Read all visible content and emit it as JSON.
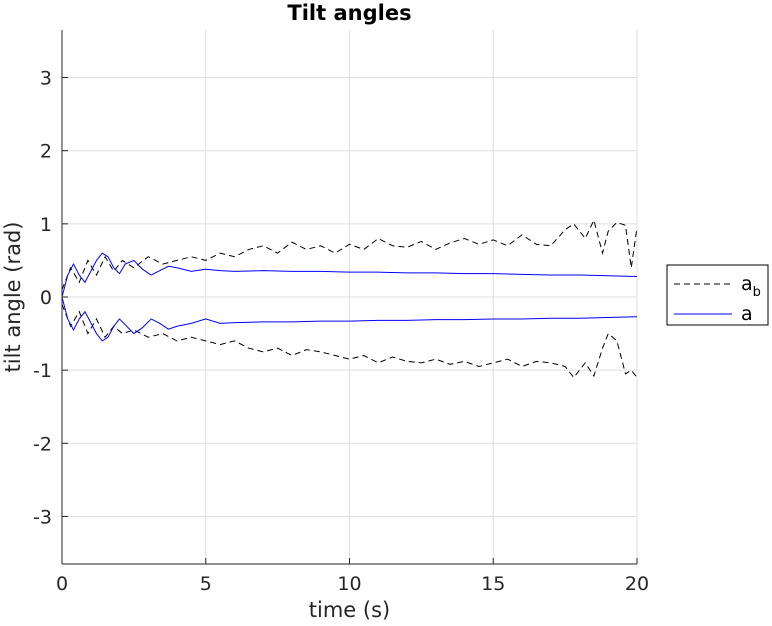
{
  "chart_data": {
    "type": "line",
    "title": "Tilt angles",
    "xlabel": "time (s)",
    "ylabel": "tilt angle (rad)",
    "xlim": [
      0,
      20
    ],
    "ylim": [
      -3.65,
      3.65
    ],
    "xticks": [
      0,
      5,
      10,
      15,
      20
    ],
    "xtick_labels": [
      "0",
      "5",
      "10",
      "15",
      "20"
    ],
    "yticks": [
      -3,
      -2,
      -1,
      0,
      1,
      2,
      3
    ],
    "ytick_labels": [
      "-3",
      "-2",
      "-1",
      "0",
      "1",
      "2",
      "3"
    ],
    "grid": true,
    "legend_position": "outside-right",
    "legend": [
      {
        "base": "a",
        "subscript": "b",
        "style": "dashed",
        "color": "#000000"
      },
      {
        "base": "a",
        "subscript": "",
        "style": "solid",
        "color": "#0000ff"
      }
    ],
    "series": [
      {
        "legend": 0,
        "style": "dashed",
        "color": "#000000",
        "x": [
          0,
          0.3,
          0.6,
          0.9,
          1.2,
          1.5,
          1.8,
          2.1,
          2.5,
          3,
          3.5,
          4,
          4.5,
          5,
          5.5,
          6,
          6.5,
          7,
          7.5,
          8,
          8.5,
          9,
          9.5,
          10,
          10.5,
          11,
          11.5,
          12,
          12.5,
          13,
          13.5,
          14,
          14.5,
          15,
          15.5,
          16,
          16.5,
          17,
          17.5,
          17.8,
          18.2,
          18.5,
          18.8,
          19,
          19.3,
          19.6,
          19.8,
          20
        ],
        "y": [
          0.1,
          0.4,
          0.2,
          0.5,
          0.3,
          0.55,
          0.35,
          0.5,
          0.4,
          0.55,
          0.45,
          0.5,
          0.55,
          0.5,
          0.6,
          0.55,
          0.65,
          0.7,
          0.6,
          0.75,
          0.65,
          0.7,
          0.6,
          0.72,
          0.65,
          0.8,
          0.7,
          0.68,
          0.76,
          0.65,
          0.74,
          0.8,
          0.72,
          0.78,
          0.7,
          0.85,
          0.72,
          0.7,
          0.92,
          1.0,
          0.8,
          1.05,
          0.6,
          0.9,
          1.02,
          0.98,
          0.4,
          0.95
        ]
      },
      {
        "legend": 0,
        "style": "dashed",
        "color": "#000000",
        "x": [
          0,
          0.3,
          0.6,
          0.9,
          1.2,
          1.5,
          1.8,
          2.1,
          2.5,
          3,
          3.5,
          4,
          4.5,
          5,
          5.5,
          6,
          6.5,
          7,
          7.5,
          8,
          8.5,
          9,
          9.5,
          10,
          10.5,
          11,
          11.5,
          12,
          12.5,
          13,
          13.5,
          14,
          14.5,
          15,
          15.5,
          16,
          16.5,
          17,
          17.5,
          17.8,
          18.2,
          18.5,
          18.8,
          19,
          19.3,
          19.6,
          19.8,
          20
        ],
        "y": [
          -0.1,
          -0.4,
          -0.2,
          -0.5,
          -0.3,
          -0.55,
          -0.4,
          -0.5,
          -0.45,
          -0.55,
          -0.5,
          -0.6,
          -0.55,
          -0.6,
          -0.65,
          -0.6,
          -0.7,
          -0.75,
          -0.7,
          -0.8,
          -0.72,
          -0.75,
          -0.8,
          -0.85,
          -0.8,
          -0.9,
          -0.82,
          -0.88,
          -0.9,
          -0.85,
          -0.92,
          -0.88,
          -0.95,
          -0.9,
          -0.85,
          -0.95,
          -0.88,
          -0.9,
          -0.95,
          -1.1,
          -0.9,
          -1.08,
          -0.7,
          -0.5,
          -0.6,
          -1.05,
          -1.0,
          -1.1
        ]
      },
      {
        "legend": 1,
        "style": "solid",
        "color": "#0000ff",
        "x": [
          0,
          0.2,
          0.4,
          0.6,
          0.8,
          1,
          1.2,
          1.4,
          1.6,
          1.8,
          2,
          2.2,
          2.5,
          2.8,
          3.1,
          3.4,
          3.7,
          4,
          4.5,
          5,
          5.5,
          6,
          7,
          8,
          9,
          10,
          11,
          12,
          13,
          14,
          15,
          16,
          17,
          18,
          19,
          20
        ],
        "y": [
          0.0,
          0.3,
          0.45,
          0.3,
          0.2,
          0.35,
          0.5,
          0.6,
          0.55,
          0.4,
          0.32,
          0.45,
          0.5,
          0.38,
          0.3,
          0.36,
          0.42,
          0.4,
          0.35,
          0.38,
          0.36,
          0.35,
          0.36,
          0.35,
          0.35,
          0.34,
          0.34,
          0.33,
          0.33,
          0.32,
          0.32,
          0.31,
          0.3,
          0.3,
          0.29,
          0.28
        ]
      },
      {
        "legend": 1,
        "style": "solid",
        "color": "#0000ff",
        "x": [
          0,
          0.2,
          0.4,
          0.6,
          0.8,
          1,
          1.2,
          1.4,
          1.6,
          1.8,
          2,
          2.2,
          2.5,
          2.8,
          3.1,
          3.4,
          3.7,
          4,
          4.5,
          5,
          5.5,
          6,
          7,
          8,
          9,
          10,
          11,
          12,
          13,
          14,
          15,
          16,
          17,
          18,
          19,
          20
        ],
        "y": [
          0.0,
          -0.3,
          -0.45,
          -0.3,
          -0.2,
          -0.35,
          -0.5,
          -0.6,
          -0.55,
          -0.4,
          -0.3,
          -0.38,
          -0.5,
          -0.42,
          -0.3,
          -0.36,
          -0.44,
          -0.4,
          -0.36,
          -0.3,
          -0.36,
          -0.35,
          -0.34,
          -0.34,
          -0.33,
          -0.33,
          -0.32,
          -0.32,
          -0.31,
          -0.31,
          -0.3,
          -0.3,
          -0.29,
          -0.29,
          -0.28,
          -0.27
        ]
      }
    ]
  }
}
